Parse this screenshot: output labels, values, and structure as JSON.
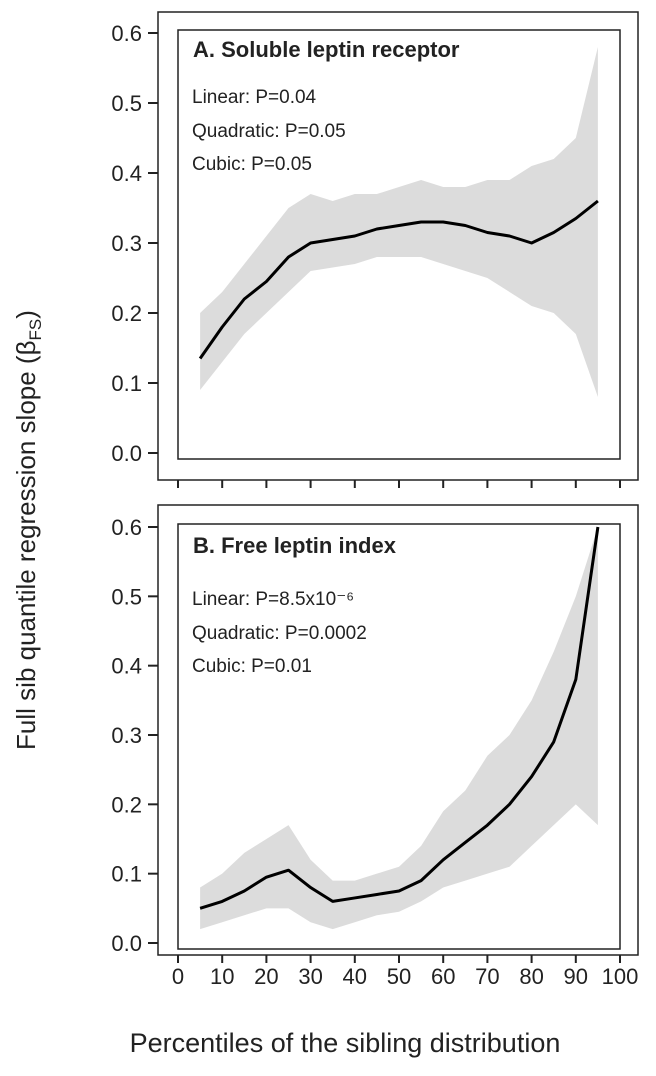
{
  "chart_data": [
    {
      "type": "line",
      "title": "A. Soluble leptin receptor",
      "annotations": [
        "Linear: P=0.04",
        "Quadratic: P=0.05",
        "Cubic: P=0.05"
      ],
      "ylabel": [
        "Full sib quantile regression slope (β",
        "FS",
        ")"
      ],
      "x": [
        5,
        10,
        15,
        20,
        25,
        30,
        35,
        40,
        45,
        50,
        55,
        60,
        65,
        70,
        75,
        80,
        85,
        90,
        95
      ],
      "values": [
        0.135,
        0.18,
        0.22,
        0.245,
        0.28,
        0.3,
        0.305,
        0.31,
        0.32,
        0.325,
        0.33,
        0.33,
        0.325,
        0.315,
        0.31,
        0.3,
        0.315,
        0.335,
        0.36
      ],
      "upper": [
        0.2,
        0.23,
        0.27,
        0.31,
        0.35,
        0.37,
        0.36,
        0.37,
        0.37,
        0.38,
        0.39,
        0.38,
        0.38,
        0.39,
        0.39,
        0.41,
        0.42,
        0.45,
        0.58
      ],
      "lower": [
        0.09,
        0.13,
        0.17,
        0.2,
        0.23,
        0.26,
        0.265,
        0.27,
        0.28,
        0.28,
        0.28,
        0.27,
        0.26,
        0.25,
        0.23,
        0.21,
        0.2,
        0.17,
        0.08
      ],
      "color": "#000000",
      "band_color": "#dcdcdc",
      "xlim": [
        0,
        100
      ],
      "xticks": [
        0,
        10,
        20,
        30,
        40,
        50,
        60,
        70,
        80,
        90,
        100
      ],
      "ylim": [
        0,
        0.6
      ],
      "yticks": [
        {
          "value": 0,
          "label": "0.0"
        },
        0.1,
        0.2,
        0.3,
        0.4,
        0.5,
        0.6
      ]
    },
    {
      "type": "line",
      "title": "B. Free leptin index",
      "annotations": [
        "Linear: P=8.5x10⁻⁶",
        "Quadratic: P=0.0002",
        "Cubic: P=0.01"
      ],
      "xlabel": "Percentiles of the sibling distribution",
      "x": [
        5,
        10,
        15,
        20,
        25,
        30,
        35,
        40,
        45,
        50,
        55,
        60,
        65,
        70,
        75,
        80,
        85,
        90,
        95
      ],
      "values": [
        0.05,
        0.06,
        0.075,
        0.095,
        0.105,
        0.08,
        0.06,
        0.065,
        0.07,
        0.075,
        0.09,
        0.12,
        0.145,
        0.17,
        0.2,
        0.24,
        0.29,
        0.38,
        0.6
      ],
      "upper": [
        0.08,
        0.1,
        0.13,
        0.15,
        0.17,
        0.12,
        0.09,
        0.09,
        0.1,
        0.11,
        0.14,
        0.19,
        0.22,
        0.27,
        0.3,
        0.35,
        0.42,
        0.5,
        0.6
      ],
      "lower": [
        0.02,
        0.03,
        0.04,
        0.05,
        0.05,
        0.03,
        0.02,
        0.03,
        0.04,
        0.045,
        0.06,
        0.08,
        0.09,
        0.1,
        0.11,
        0.14,
        0.17,
        0.2,
        0.17
      ],
      "color": "#000000",
      "band_color": "#dcdcdc",
      "xlim": [
        0,
        100
      ],
      "xticks": [
        0,
        10,
        20,
        30,
        40,
        50,
        60,
        70,
        80,
        90,
        100
      ],
      "ylim": [
        0,
        0.6
      ],
      "yticks": [
        {
          "value": 0,
          "label": "0.0"
        },
        0.1,
        0.2,
        0.3,
        0.4,
        0.5,
        0.6
      ]
    }
  ]
}
